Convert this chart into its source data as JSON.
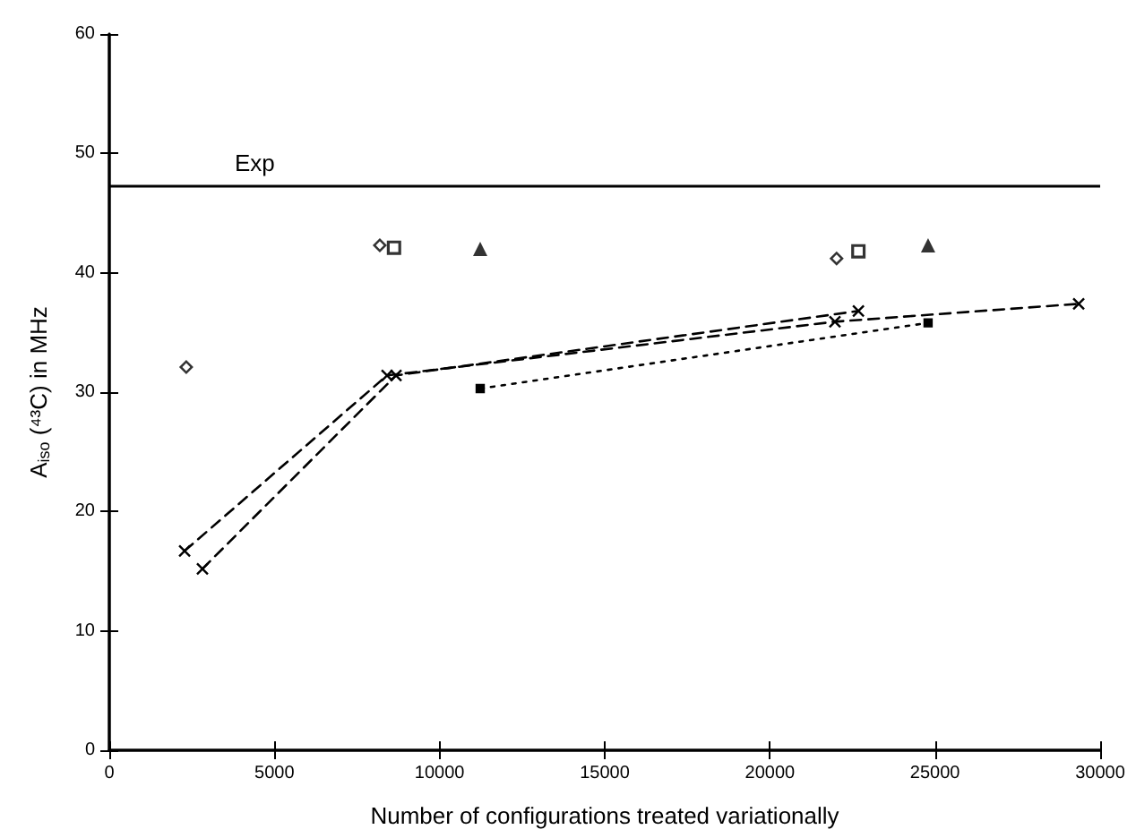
{
  "chart_data": {
    "type": "line",
    "xlabel": "Number of configurations treated variationally",
    "ylabel": "A$_{iso}$ (⁴³C) in MHz",
    "xlim": [
      0,
      30000
    ],
    "xticks": [
      0,
      5000,
      10000,
      15000,
      20000,
      25000,
      30000
    ],
    "ylim": [
      0,
      60
    ],
    "yticks": [
      0,
      10,
      20,
      30,
      40,
      50,
      60
    ],
    "grid": false,
    "ref_lines": [
      {
        "axis": "y",
        "value": 47.3,
        "label": "Exp",
        "color": "#000000",
        "line_style": "solid"
      }
    ],
    "series": [
      {
        "type": "line",
        "color": "#000000",
        "line_style": "dashed",
        "marker": "cross",
        "x": [
          2280,
          8410,
          21970,
          29350
        ],
        "values": [
          16.7,
          31.4,
          35.9,
          37.4
        ]
      },
      {
        "type": "line",
        "color": "#000000",
        "line_style": "dashed",
        "marker": "cross",
        "x": [
          2820,
          8680,
          22680
        ],
        "values": [
          15.2,
          31.4,
          36.8
        ]
      },
      {
        "type": "line",
        "color": "#000000",
        "line_style": "dotted",
        "marker": "square",
        "x": [
          11230,
          24790
        ],
        "values": [
          30.3,
          35.8
        ]
      },
      {
        "type": "scatter",
        "color": "#000000",
        "marker": "diamond",
        "x": [
          2330,
          8190,
          22020
        ],
        "values": [
          32.1,
          42.3,
          41.2
        ]
      },
      {
        "type": "scatter",
        "color": "#000000",
        "marker": "square",
        "x": [
          8620,
          22680
        ],
        "values": [
          42.1,
          41.8
        ]
      },
      {
        "type": "scatter",
        "color": "#000000",
        "marker": "triangle",
        "x": [
          11230,
          24790
        ],
        "values": [
          42.0,
          42.3
        ]
      }
    ]
  }
}
